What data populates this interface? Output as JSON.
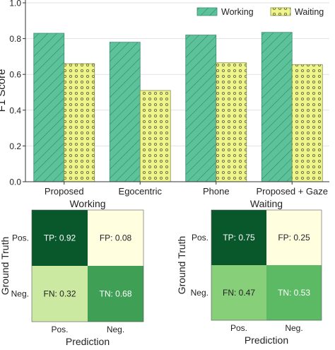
{
  "colors": {
    "working": "#5cc29a",
    "working_edge": "#3d8f70",
    "waiting": "#eef58c",
    "waiting_edge": "#8c9050",
    "cm_dark": "#08582c",
    "cm_light": "#ffffe0",
    "cm_light_green": "#cbe9a0",
    "cm_mid_green": "#3f9f55",
    "cm_pale_green": "#88cf7a",
    "cm_green": "#5cb964"
  },
  "chart_data": [
    {
      "type": "bar",
      "ylabel": "F1 Score",
      "ylim": [
        0,
        1.0
      ],
      "yticks": [
        "0.0",
        "0.2",
        "0.4",
        "0.6",
        "0.8",
        "1.0"
      ],
      "categories": [
        "Proposed",
        "Egocentric",
        "Phone",
        "Proposed + Gaze"
      ],
      "legend_placement": "top-right",
      "grid": "horizontal",
      "series": [
        {
          "name": "Working",
          "values": [
            0.83,
            0.78,
            0.82,
            0.835
          ]
        },
        {
          "name": "Waiting",
          "values": [
            0.66,
            0.51,
            0.665,
            0.655
          ]
        }
      ]
    },
    {
      "type": "heatmap",
      "title": "Working",
      "xlabel": "Prediction",
      "ylabel": "Ground Truth",
      "x_categories": [
        "Pos.",
        "Neg."
      ],
      "y_categories": [
        "Pos.",
        "Neg."
      ],
      "cells": [
        [
          "TP: 0.92",
          "FP: 0.08"
        ],
        [
          "FN: 0.32",
          "TN: 0.68"
        ]
      ],
      "values": [
        [
          0.92,
          0.08
        ],
        [
          0.32,
          0.68
        ]
      ]
    },
    {
      "type": "heatmap",
      "title": "Waiting",
      "xlabel": "Prediction",
      "ylabel": "Ground Truth",
      "x_categories": [
        "Pos.",
        "Neg."
      ],
      "y_categories": [
        "Pos.",
        "Neg."
      ],
      "cells": [
        [
          "TP: 0.75",
          "FP: 0.25"
        ],
        [
          "FN: 0.47",
          "TN: 0.53"
        ]
      ],
      "values": [
        [
          0.75,
          0.25
        ],
        [
          0.47,
          0.53
        ]
      ]
    }
  ]
}
